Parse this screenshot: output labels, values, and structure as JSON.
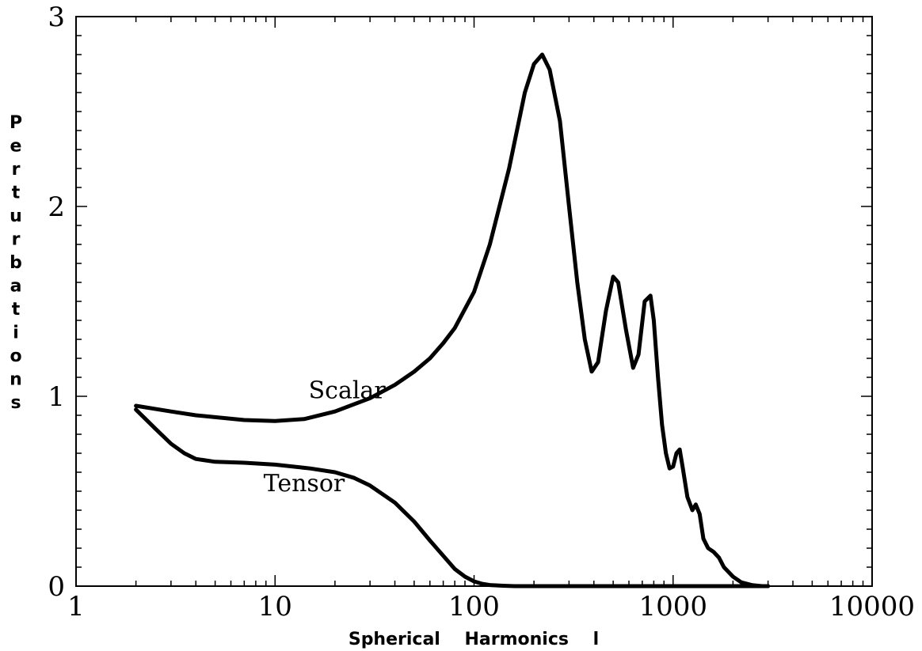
{
  "chart_data": {
    "type": "line",
    "xlabel": "Spherical    Harmonics    l",
    "ylabel": "Perturbations",
    "xscale": "log",
    "xlim": [
      1,
      10000
    ],
    "ylim": [
      0,
      3
    ],
    "xticks": [
      1,
      10,
      100,
      1000,
      10000
    ],
    "xtick_labels": [
      "1",
      "10",
      "100",
      "1000",
      "10000"
    ],
    "yticks": [
      0,
      1,
      2,
      3
    ],
    "ytick_labels": [
      "0",
      "1",
      "2",
      "3"
    ],
    "grid": false,
    "series": [
      {
        "name": "Scalar",
        "label_at": [
          23,
          0.99
        ],
        "x": [
          2,
          3,
          4,
          5,
          7,
          10,
          14,
          20,
          30,
          40,
          50,
          60,
          70,
          80,
          100,
          120,
          150,
          180,
          200,
          220,
          240,
          270,
          300,
          330,
          360,
          390,
          420,
          460,
          500,
          530,
          580,
          630,
          670,
          720,
          770,
          800,
          840,
          880,
          920,
          960,
          1000,
          1040,
          1080,
          1120,
          1180,
          1250,
          1300,
          1360,
          1420,
          1500,
          1600,
          1700,
          1800,
          2000,
          2200,
          2500,
          2800,
          3000
        ],
        "y": [
          0.95,
          0.92,
          0.9,
          0.89,
          0.875,
          0.87,
          0.88,
          0.92,
          0.99,
          1.06,
          1.13,
          1.2,
          1.28,
          1.36,
          1.55,
          1.8,
          2.2,
          2.6,
          2.75,
          2.8,
          2.72,
          2.45,
          2.0,
          1.6,
          1.3,
          1.13,
          1.18,
          1.45,
          1.63,
          1.6,
          1.35,
          1.15,
          1.22,
          1.5,
          1.53,
          1.4,
          1.1,
          0.85,
          0.7,
          0.62,
          0.63,
          0.7,
          0.72,
          0.62,
          0.47,
          0.4,
          0.43,
          0.38,
          0.25,
          0.2,
          0.18,
          0.15,
          0.1,
          0.05,
          0.02,
          0.005,
          0.0,
          0.0
        ]
      },
      {
        "name": "Tensor",
        "label_at": [
          14,
          0.5
        ],
        "x": [
          2,
          2.5,
          3,
          3.5,
          4,
          5,
          7,
          10,
          15,
          20,
          25,
          30,
          40,
          50,
          60,
          70,
          80,
          90,
          100,
          110,
          120,
          140,
          160,
          200,
          300,
          500,
          1000,
          3000
        ],
        "y": [
          0.93,
          0.83,
          0.75,
          0.7,
          0.67,
          0.655,
          0.65,
          0.64,
          0.62,
          0.6,
          0.57,
          0.53,
          0.44,
          0.34,
          0.24,
          0.16,
          0.09,
          0.05,
          0.025,
          0.012,
          0.006,
          0.002,
          0.0,
          0.0,
          0.0,
          0.0,
          0.0,
          0.0
        ]
      }
    ]
  }
}
